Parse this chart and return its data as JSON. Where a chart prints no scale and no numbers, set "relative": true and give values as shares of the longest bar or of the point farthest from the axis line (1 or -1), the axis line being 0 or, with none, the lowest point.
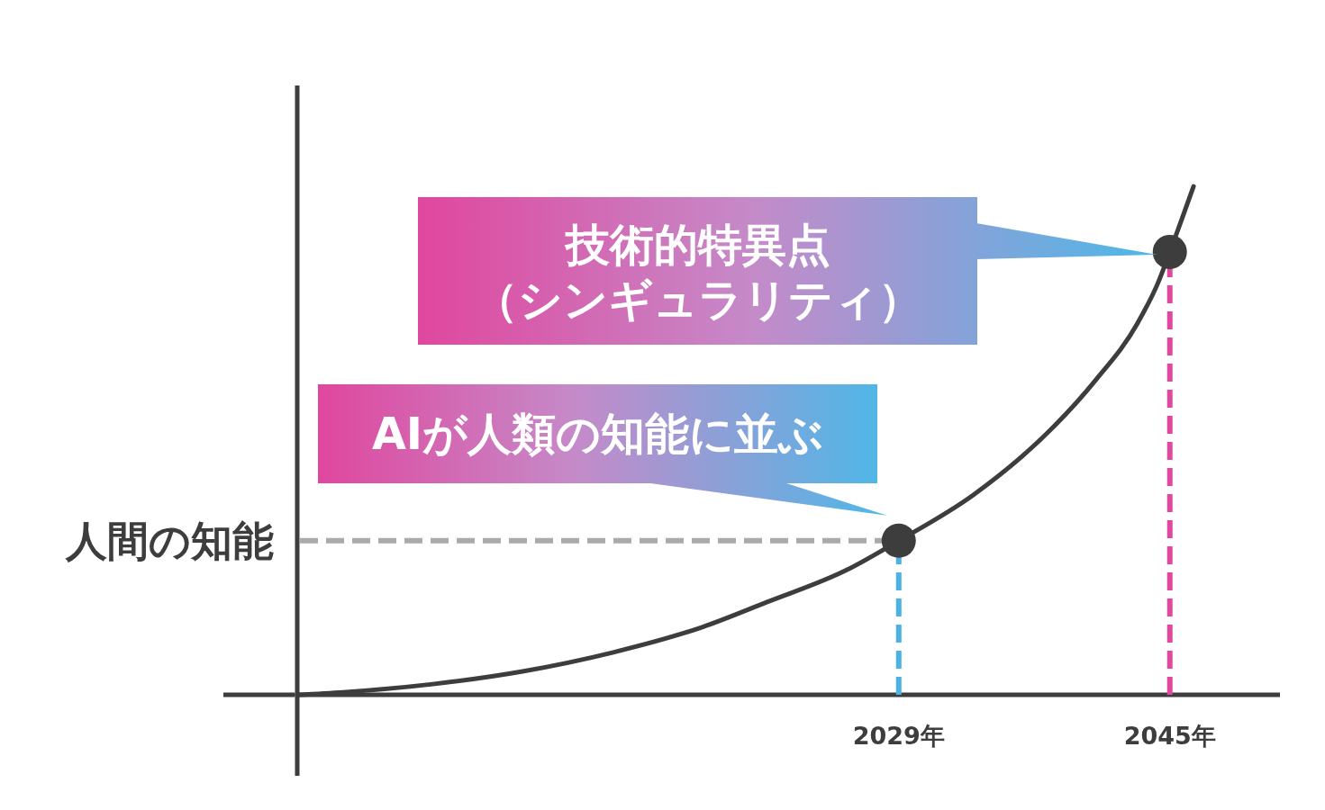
{
  "chart_data": {
    "type": "line",
    "relative": true,
    "xlim": [
      1993.5,
      2051.5
    ],
    "xticks": [
      {
        "value": 2029,
        "label": "2029年"
      },
      {
        "value": 2045,
        "label": "2045年"
      }
    ],
    "series": [
      {
        "color": "#3d3d3d",
        "x": [
          1993.5,
          1996.2,
          2001.5,
          2006.8,
          2012.1,
          2017.4,
          2021.2,
          2025.9,
          2029,
          2033.4,
          2038.2,
          2040.6,
          2043.1,
          2044.3,
          2045,
          2046.4
        ],
        "values": [
          0,
          0.005,
          0.021,
          0.046,
          0.083,
          0.133,
          0.182,
          0.245,
          0.303,
          0.393,
          0.529,
          0.618,
          0.731,
          0.81,
          0.871,
          1
        ]
      },
      {
        "type": "scatter",
        "color": "#3d3d3d",
        "marker": "circle",
        "x": [
          2029,
          2045
        ],
        "values": [
          0.303,
          0.871
        ]
      }
    ],
    "ref_lines": [
      {
        "axis": "y",
        "value": 0.303,
        "label": "人間の知能",
        "color": "#aaaaaa",
        "line_style": "dashed"
      },
      {
        "axis": "x",
        "value": 2029,
        "color": "#4ab3e3",
        "line_style": "dashed"
      },
      {
        "axis": "x",
        "value": 2045,
        "color": "#e0479e",
        "line_style": "dashed"
      }
    ],
    "annotations": [
      "技術的特異点",
      "（シンギュラリティ）",
      {
        "text": "AIが人類の知能に並ぶ",
        "x": 2029,
        "y": 0.303
      }
    ]
  }
}
